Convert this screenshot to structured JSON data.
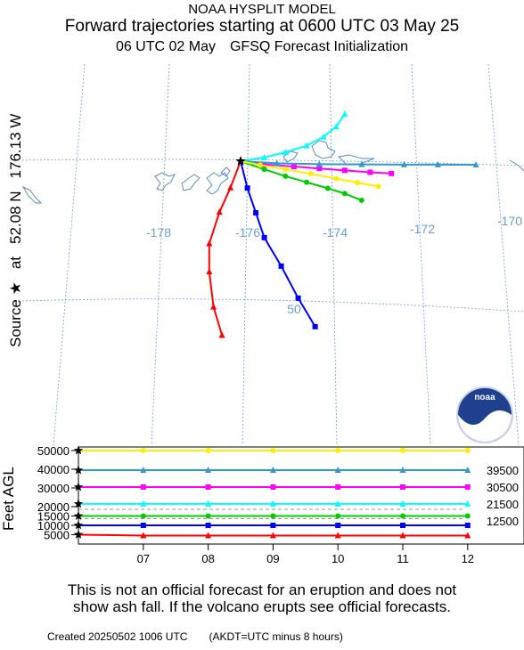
{
  "header": {
    "model": "NOAA HYSPLIT MODEL",
    "title": "Forward trajectories starting at 0600 UTC 03 May 25",
    "met_run": "06 UTC 02 May",
    "met_model": "GFSQ  Forecast Initialization"
  },
  "source": {
    "label": "Source ★",
    "at": "at",
    "lat": "52.08 N",
    "lon": "176.13 W"
  },
  "chart_data": [
    {
      "type": "map",
      "longitude_labels": [
        "-178",
        "-176",
        "-174",
        "-172",
        "-170"
      ],
      "latitude_labels": [
        "50"
      ],
      "source_point": {
        "lat": 52.08,
        "lon": -176.13
      },
      "trajectories": [
        {
          "height_ft": 5000,
          "color": "#ff0000",
          "marker": "triangle",
          "points": [
            [
              -176.13,
              52.08
            ],
            [
              -176.25,
              51.7
            ],
            [
              -176.38,
              51.35
            ],
            [
              -176.5,
              50.9
            ],
            [
              -176.5,
              50.5
            ],
            [
              -176.45,
              50.0
            ],
            [
              -176.35,
              49.6
            ]
          ]
        },
        {
          "height_ft": 10000,
          "color": "#0000ff",
          "marker": "square",
          "points": [
            [
              -176.13,
              52.08
            ],
            [
              -176.05,
              51.7
            ],
            [
              -175.95,
              51.35
            ],
            [
              -175.85,
              51.0
            ],
            [
              -175.65,
              50.6
            ],
            [
              -175.45,
              50.15
            ],
            [
              -175.25,
              49.75
            ]
          ]
        },
        {
          "height_ft": 15000,
          "color": "#00cc00",
          "marker": "circle",
          "points": [
            [
              -176.13,
              52.08
            ],
            [
              -175.85,
              51.97
            ],
            [
              -175.6,
              51.88
            ],
            [
              -175.35,
              51.8
            ],
            [
              -175.1,
              51.72
            ],
            [
              -174.9,
              51.65
            ],
            [
              -174.7,
              51.56
            ]
          ]
        },
        {
          "height_ft": 21500,
          "color": "#00ffff",
          "marker": "triangle",
          "points": [
            [
              -176.13,
              52.08
            ],
            [
              -175.85,
              52.14
            ],
            [
              -175.6,
              52.22
            ],
            [
              -175.35,
              52.32
            ],
            [
              -175.15,
              52.45
            ],
            [
              -175.0,
              52.6
            ],
            [
              -174.9,
              52.78
            ]
          ]
        },
        {
          "height_ft": 30500,
          "color": "#ff00ff",
          "marker": "square",
          "points": [
            [
              -176.13,
              52.08
            ],
            [
              -175.85,
              52.04
            ],
            [
              -175.5,
              52.02
            ],
            [
              -175.2,
              52.0
            ],
            [
              -174.9,
              51.98
            ],
            [
              -174.6,
              51.96
            ],
            [
              -174.35,
              51.95
            ]
          ]
        },
        {
          "height_ft": 39500,
          "color": "#3399cc",
          "marker": "triangle",
          "points": [
            [
              -176.13,
              52.08
            ],
            [
              -175.7,
              52.06
            ],
            [
              -175.2,
              52.06
            ],
            [
              -174.7,
              52.07
            ],
            [
              -174.2,
              52.08
            ],
            [
              -173.8,
              52.09
            ],
            [
              -173.35,
              52.1
            ]
          ]
        },
        {
          "height_ft": 50000,
          "color": "#ffee00",
          "marker": "circle",
          "points": [
            [
              -176.13,
              52.08
            ],
            [
              -175.9,
              52.03
            ],
            [
              -175.6,
              51.98
            ],
            [
              -175.3,
              51.92
            ],
            [
              -175.0,
              51.86
            ],
            [
              -174.75,
              51.81
            ],
            [
              -174.5,
              51.76
            ]
          ]
        }
      ]
    },
    {
      "type": "line",
      "ylabel": "Feet AGL",
      "x_tick_labels": [
        "07",
        "08",
        "09",
        "10",
        "11",
        "12"
      ],
      "y_tick_labels": [
        "50000",
        "40000",
        "30000",
        "20000",
        "15000",
        "10000",
        "5000"
      ],
      "right_labels": [
        "39500",
        "30500",
        "21500",
        "12500"
      ],
      "series": [
        {
          "height_ft": 50000,
          "color": "#ffee00",
          "values": [
            50000,
            50000,
            50000,
            50000,
            50000,
            50000,
            50000
          ]
        },
        {
          "height_ft": 39500,
          "color": "#3399cc",
          "values": [
            39500,
            39500,
            39500,
            39500,
            39500,
            39500,
            39500
          ]
        },
        {
          "height_ft": 30500,
          "color": "#ff00ff",
          "values": [
            30500,
            30500,
            30500,
            30500,
            30500,
            30500,
            30500
          ]
        },
        {
          "height_ft": 21500,
          "color": "#00ffff",
          "values": [
            21500,
            21500,
            21500,
            21500,
            21500,
            21500,
            21500
          ]
        },
        {
          "height_ft": 15000,
          "color": "#00cc00",
          "values": [
            15000,
            15000,
            15000,
            15000,
            15000,
            15000,
            15000
          ]
        },
        {
          "height_ft": 10000,
          "color": "#0000ff",
          "values": [
            10000,
            10000,
            10000,
            10000,
            10000,
            10000,
            10000
          ]
        },
        {
          "height_ft": 5000,
          "color": "#ff0000",
          "values": [
            5000,
            4500,
            4500,
            4500,
            4500,
            4500,
            4500
          ]
        }
      ]
    }
  ],
  "disclaimer": {
    "line1": "This is not an official forecast for an eruption and does not",
    "line2": "show ash fall. If the volcano erupts see official forecasts."
  },
  "footer": {
    "created": "Created 20250502 1006 UTC",
    "note": "(AKDT=UTC minus 8 hours)"
  }
}
